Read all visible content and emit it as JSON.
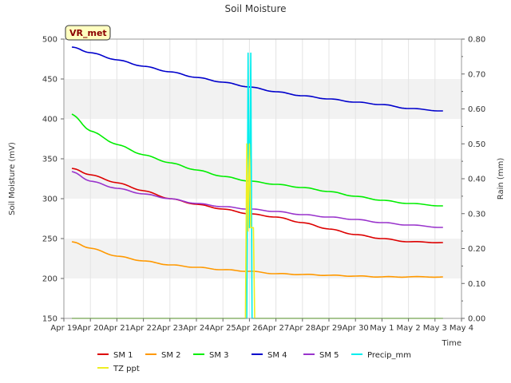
{
  "chart_data": {
    "type": "line",
    "title": "Soil Moisture",
    "xlabel": "Time",
    "ylabel": "Soil Moisture (mV)",
    "ylabel_right": "Rain (mm)",
    "badge": "VR_met",
    "ylim": [
      150,
      500
    ],
    "ylim_right": [
      0,
      0.8
    ],
    "xlim": [
      0,
      15
    ],
    "yticks": [
      150,
      200,
      250,
      300,
      350,
      400,
      450,
      500
    ],
    "yticks_right": [
      0.0,
      0.1,
      0.2,
      0.3,
      0.4,
      0.5,
      0.6,
      0.7,
      0.8
    ],
    "ytick_labels_right": [
      "0.00",
      "0.10",
      "0.20",
      "0.30",
      "0.40",
      "0.50",
      "0.60",
      "0.70",
      "0.80"
    ],
    "x_tick_labels": [
      "Apr 19",
      "Apr 20",
      "Apr 21",
      "Apr 22",
      "Apr 23",
      "Apr 24",
      "Apr 25",
      "Apr 26",
      "Apr 27",
      "Apr 28",
      "Apr 29",
      "Apr 30",
      "May 1",
      "May 2",
      "May 3",
      "May 4"
    ],
    "grid_bands": true,
    "colors": {
      "sm1": "#dd0000",
      "sm2": "#ff9900",
      "sm3": "#00ee00",
      "sm4": "#0000cc",
      "sm5": "#9933cc",
      "precip": "#00eeee",
      "tz": "#eeee22",
      "band": "#f2f2f2",
      "badge_bg": "#ffffc0"
    },
    "series": [
      {
        "name": "SM 1",
        "key": "sm1",
        "axis": "left",
        "x": [
          0.3,
          1,
          2,
          3,
          4,
          5,
          6,
          7,
          8,
          9,
          10,
          11,
          12,
          13,
          14.3
        ],
        "values": [
          338,
          330,
          320,
          310,
          300,
          293,
          287,
          281,
          277,
          270,
          262,
          255,
          250,
          246,
          245
        ]
      },
      {
        "name": "SM 2",
        "key": "sm2",
        "axis": "left",
        "x": [
          0.3,
          1,
          2,
          3,
          4,
          5,
          6,
          7,
          8,
          9,
          10,
          11,
          12,
          13,
          14.3
        ],
        "values": [
          246,
          238,
          228,
          222,
          217,
          214,
          211,
          209,
          206,
          205,
          204,
          203,
          202,
          202,
          202
        ]
      },
      {
        "name": "SM 3",
        "key": "sm3",
        "axis": "left",
        "x": [
          0.3,
          1,
          2,
          3,
          4,
          5,
          6,
          7,
          8,
          9,
          10,
          11,
          12,
          13,
          14.3
        ],
        "values": [
          406,
          385,
          368,
          355,
          345,
          336,
          328,
          322,
          318,
          314,
          309,
          303,
          298,
          294,
          291
        ]
      },
      {
        "name": "SM 4",
        "key": "sm4",
        "axis": "left",
        "x": [
          0.3,
          1,
          2,
          3,
          4,
          5,
          6,
          7,
          8,
          9,
          10,
          11,
          12,
          13,
          14.3
        ],
        "values": [
          490,
          483,
          474,
          466,
          459,
          452,
          446,
          440,
          434,
          429,
          425,
          421,
          418,
          413,
          410
        ]
      },
      {
        "name": "SM 5",
        "key": "sm5",
        "axis": "left",
        "x": [
          0.3,
          1,
          2,
          3,
          4,
          5,
          6,
          7,
          8,
          9,
          10,
          11,
          12,
          13,
          14.3
        ],
        "values": [
          334,
          322,
          313,
          306,
          300,
          294,
          290,
          287,
          284,
          280,
          277,
          274,
          270,
          267,
          264
        ]
      },
      {
        "name": "Precip_mm",
        "key": "precip",
        "axis": "right",
        "style": "spike",
        "x": [
          0.3,
          6.9,
          6.95,
          7.0,
          7.05,
          7.1,
          14.3
        ],
        "values": [
          0,
          0,
          0.76,
          0.26,
          0.76,
          0,
          0
        ]
      },
      {
        "name": "TZ ppt",
        "key": "tz",
        "axis": "right",
        "style": "spike",
        "x": [
          0.3,
          6.85,
          6.9,
          6.95,
          7.0,
          7.05,
          7.1,
          7.15,
          7.2,
          14.3
        ],
        "values": [
          0,
          0,
          0.5,
          0.25,
          0.5,
          0.26,
          0.26,
          0.26,
          0,
          0
        ]
      }
    ],
    "legend": [
      {
        "name": "SM 1",
        "key": "sm1"
      },
      {
        "name": "SM 2",
        "key": "sm2"
      },
      {
        "name": "SM 3",
        "key": "sm3"
      },
      {
        "name": "SM 4",
        "key": "sm4"
      },
      {
        "name": "SM 5",
        "key": "sm5"
      },
      {
        "name": "Precip_mm",
        "key": "precip"
      },
      {
        "name": "TZ ppt",
        "key": "tz"
      }
    ]
  }
}
